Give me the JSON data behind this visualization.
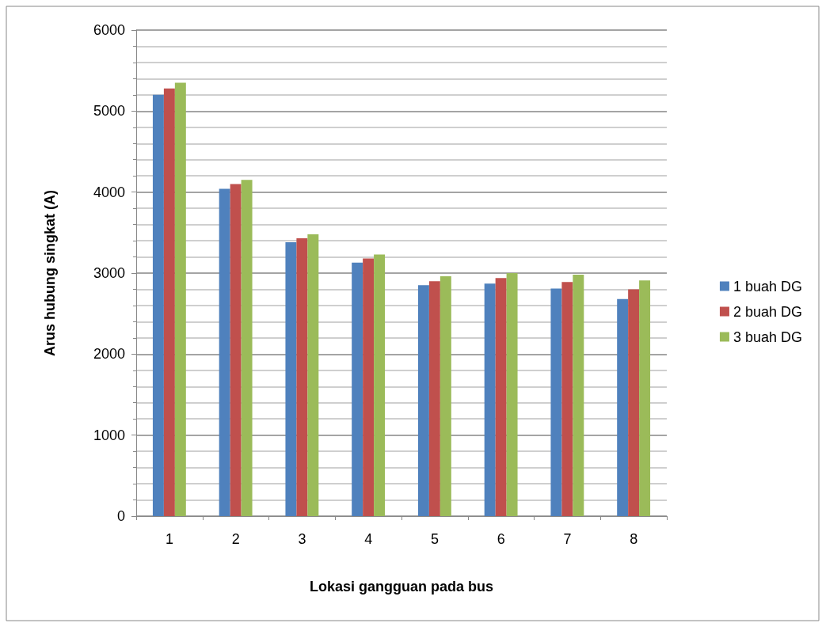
{
  "chart_data": {
    "type": "bar",
    "xlabel": "Lokasi gangguan pada bus",
    "ylabel": "Arus hubung singkat (A)",
    "categories": [
      "1",
      "2",
      "3",
      "4",
      "5",
      "6",
      "7",
      "8"
    ],
    "series": [
      {
        "name": "1 buah DG",
        "color": "#4f81bd",
        "values": [
          5200,
          4040,
          3380,
          3130,
          2850,
          2870,
          2810,
          2680
        ]
      },
      {
        "name": "2 buah DG",
        "color": "#c0504d",
        "values": [
          5280,
          4100,
          3430,
          3180,
          2900,
          2940,
          2890,
          2800
        ]
      },
      {
        "name": "3 buah DG",
        "color": "#9bbb59",
        "values": [
          5350,
          4150,
          3480,
          3230,
          2960,
          3000,
          2980,
          2910
        ]
      }
    ],
    "ylim": [
      0,
      6000
    ],
    "yticks": [
      0,
      1000,
      2000,
      3000,
      4000,
      5000,
      6000
    ],
    "grid": true,
    "legend": "right"
  }
}
